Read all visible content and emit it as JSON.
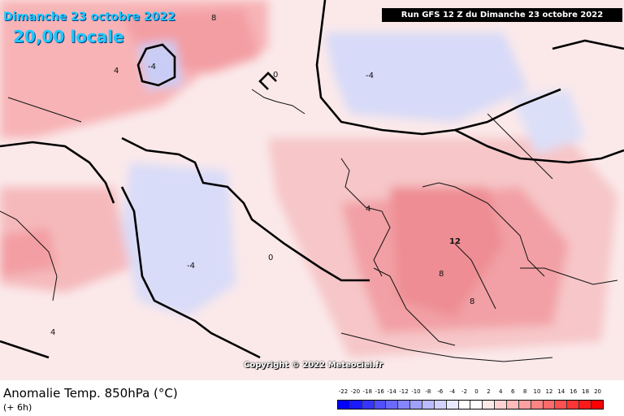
{
  "header": {
    "date_title": "Dimanche 23 octobre 2022",
    "time_title": "20,00 locale",
    "run_banner": "Run GFS 12 Z du Dimanche 23 octobre 2022"
  },
  "footer": {
    "parameter_title": "Anomalie Temp. 850hPa (°C)",
    "lead_time": "(+ 6h)",
    "copyright": "Copyright © 2022 Meteociel.fr"
  },
  "legend": {
    "labels": [
      "-22",
      "-20",
      "-18",
      "-16",
      "-14",
      "-12",
      "-10",
      "-8",
      "-6",
      "-4",
      "-2",
      "0",
      "2",
      "4",
      "6",
      "8",
      "10",
      "12",
      "14",
      "16",
      "18",
      "20"
    ],
    "colors": [
      "#0000ff",
      "#1a1aff",
      "#3535ff",
      "#5050ff",
      "#6a6aff",
      "#8585ff",
      "#a0a0ff",
      "#bbbbff",
      "#d2d2ff",
      "#e8e8ff",
      "#ffffff",
      "#ffffff",
      "#ffe8e8",
      "#ffd2d2",
      "#ffbbbb",
      "#ffa0a0",
      "#ff8585",
      "#ff6a6a",
      "#ff5050",
      "#ff3535",
      "#ff1a1a",
      "#ff0000"
    ]
  },
  "contour_labels": [
    {
      "text": "8",
      "id": "label-8-greenland"
    },
    {
      "text": "4",
      "id": "label-4-greenland"
    },
    {
      "text": "-4",
      "id": "label-m4-baffin"
    },
    {
      "text": "0",
      "id": "label-0-iceland"
    },
    {
      "text": "-4",
      "id": "label-m4-norway"
    },
    {
      "text": "4",
      "id": "label-4-uk"
    },
    {
      "text": "12",
      "id": "label-12-central-eu"
    },
    {
      "text": "8",
      "id": "label-8-alps"
    },
    {
      "text": "-4",
      "id": "label-m4-atlantic"
    },
    {
      "text": "0",
      "id": "label-0-atlantic"
    },
    {
      "text": "4",
      "id": "label-4-africa"
    },
    {
      "text": "8",
      "id": "label-8-italy"
    }
  ]
}
